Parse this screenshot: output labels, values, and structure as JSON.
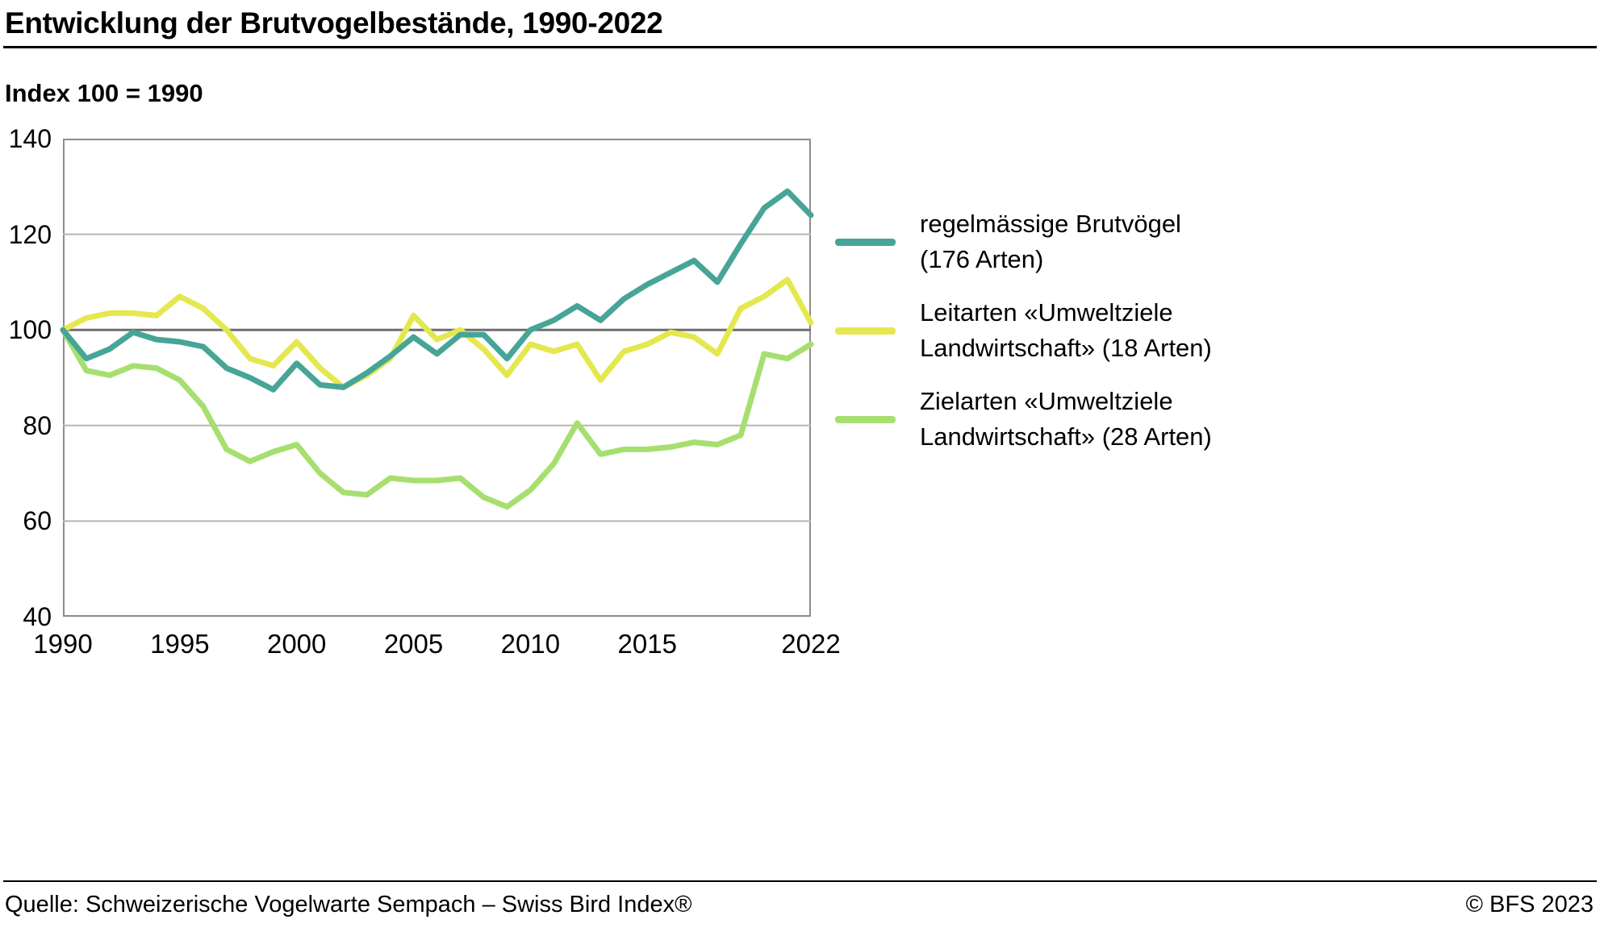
{
  "title": "Entwicklung der Brutvogelbestände, 1990-2022",
  "subtitle": "Index 100 = 1990",
  "footer": {
    "source": "Quelle: Schweizerische Vogelwarte Sempach – Swiss Bird Index®",
    "copyright": "© BFS 2023"
  },
  "colors": {
    "grid": "#b5b5b5",
    "reference": "#6e6e6e",
    "frame": "#8c8c8c"
  },
  "chart_data": {
    "type": "line",
    "title": "Entwicklung der Brutvogelbestände, 1990-2022",
    "ylabel": "Index 100 = 1990",
    "ylim": [
      40,
      140
    ],
    "y_ticks": [
      40,
      60,
      80,
      100,
      120,
      140
    ],
    "x_tick_years": [
      1990,
      1995,
      2000,
      2005,
      2010,
      2015,
      2022
    ],
    "reference_line": 100,
    "grid": true,
    "legend_position": "right",
    "x": [
      1990,
      1991,
      1992,
      1993,
      1994,
      1995,
      1996,
      1997,
      1998,
      1999,
      2000,
      2001,
      2002,
      2003,
      2004,
      2005,
      2006,
      2007,
      2008,
      2009,
      2010,
      2011,
      2012,
      2013,
      2014,
      2015,
      2016,
      2017,
      2018,
      2019,
      2020,
      2021,
      2022
    ],
    "series": [
      {
        "name": "regelmässige Brutvögel (176 Arten)",
        "color": "#46a596",
        "values": [
          100,
          94,
          96,
          99.5,
          98,
          97.5,
          96.5,
          92,
          90,
          87.5,
          93,
          88.5,
          88,
          91,
          94.5,
          98.5,
          95,
          99,
          99,
          94,
          100,
          102,
          105,
          102,
          106.5,
          109.5,
          112,
          114.5,
          110,
          118,
          125.5,
          129,
          124
        ]
      },
      {
        "name": "Leitarten «Umweltziele Landwirtschaft» (18 Arten)",
        "color": "#e4e84e",
        "values": [
          100,
          102.5,
          103.5,
          103.5,
          103,
          107,
          104.5,
          100,
          94,
          92.5,
          97.5,
          92,
          88,
          90.5,
          94,
          103,
          98,
          100,
          96,
          90.5,
          97,
          95.5,
          97,
          89.5,
          95.5,
          97,
          99.5,
          98.5,
          95,
          104.5,
          107,
          110.5,
          101.5
        ]
      },
      {
        "name": "Zielarten «Umweltziele Landwirtschaft» (28 Arten)",
        "color": "#a6df6f",
        "values": [
          100,
          91.5,
          90.5,
          92.5,
          92,
          89.5,
          84,
          75,
          72.5,
          74.5,
          76,
          70,
          66,
          65.5,
          69,
          68.5,
          68.5,
          69,
          65,
          63,
          66.5,
          72,
          80.5,
          74,
          75,
          75,
          75.5,
          76.5,
          76,
          78,
          95,
          94,
          97
        ]
      }
    ]
  }
}
